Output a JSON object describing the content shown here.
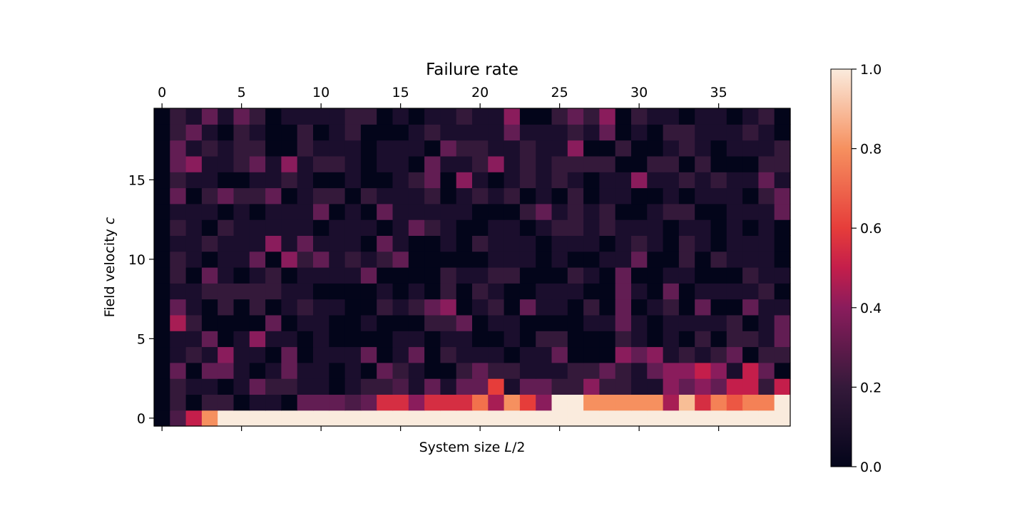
{
  "chart_data": {
    "type": "heatmap",
    "title": "Failure rate",
    "xlabel_prefix": "System size ",
    "xlabel_var": "L",
    "xlabel_suffix": "/2",
    "ylabel_prefix": "Field velocity ",
    "ylabel_var": "c",
    "x_range": [
      0,
      39
    ],
    "y_range": [
      0,
      19
    ],
    "x_ticks": [
      0,
      5,
      10,
      15,
      20,
      25,
      30,
      35
    ],
    "y_ticks": [
      0,
      5,
      10,
      15
    ],
    "x_tick_position": "top",
    "colormap": "rocket",
    "value_range": [
      0,
      1
    ],
    "colorbar_ticks": [
      "0.0",
      "0.2",
      "0.4",
      "0.6",
      "0.8",
      "1.0"
    ],
    "values": [
      [
        0.0,
        0.25,
        0.5,
        0.8,
        1.0,
        1.0,
        1.0,
        1.0,
        1.0,
        1.0,
        1.0,
        1.0,
        1.0,
        1.0,
        1.0,
        1.0,
        1.0,
        1.0,
        1.0,
        1.0,
        1.0,
        1.0,
        1.0,
        1.0,
        1.0,
        1.0,
        1.0,
        1.0,
        1.0,
        1.0,
        1.0,
        1.0,
        1.0,
        1.0,
        1.0,
        1.0,
        1.0,
        1.0,
        1.0,
        1.0
      ],
      [
        0.0,
        0.2,
        0.0,
        0.2,
        0.2,
        0.0,
        0.1,
        0.1,
        0.0,
        0.3,
        0.3,
        0.3,
        0.25,
        0.3,
        0.55,
        0.55,
        0.4,
        0.55,
        0.55,
        0.55,
        0.7,
        0.45,
        0.8,
        0.6,
        0.4,
        1.0,
        1.0,
        0.8,
        0.8,
        0.8,
        0.8,
        0.8,
        0.45,
        0.9,
        0.55,
        0.75,
        0.65,
        0.75,
        0.75,
        1.0
      ],
      [
        0.0,
        0.2,
        0.1,
        0.1,
        0.0,
        0.1,
        0.3,
        0.2,
        0.2,
        0.1,
        0.1,
        0.0,
        0.1,
        0.2,
        0.2,
        0.25,
        0.1,
        0.3,
        0.1,
        0.3,
        0.3,
        0.6,
        0.1,
        0.3,
        0.3,
        0.2,
        0.2,
        0.4,
        0.2,
        0.2,
        0.1,
        0.1,
        0.4,
        0.3,
        0.4,
        0.3,
        0.5,
        0.5,
        0.2,
        0.5
      ],
      [
        0.0,
        0.3,
        0.0,
        0.3,
        0.3,
        0.1,
        0.0,
        0.1,
        0.3,
        0.1,
        0.1,
        0.0,
        0.1,
        0.0,
        0.3,
        0.2,
        0.1,
        0.0,
        0.0,
        0.2,
        0.3,
        0.2,
        0.2,
        0.1,
        0.1,
        0.1,
        0.2,
        0.2,
        0.3,
        0.2,
        0.1,
        0.3,
        0.4,
        0.4,
        0.5,
        0.4,
        0.1,
        0.5,
        0.3,
        0.0
      ],
      [
        0.0,
        0.1,
        0.2,
        0.1,
        0.4,
        0.1,
        0.1,
        0.0,
        0.3,
        0.0,
        0.1,
        0.1,
        0.1,
        0.3,
        0.0,
        0.1,
        0.3,
        0.0,
        0.2,
        0.1,
        0.1,
        0.1,
        0.0,
        0.1,
        0.1,
        0.3,
        0.0,
        0.0,
        0.0,
        0.4,
        0.3,
        0.4,
        0.1,
        0.2,
        0.1,
        0.2,
        0.3,
        0.0,
        0.2,
        0.2
      ],
      [
        0.0,
        0.1,
        0.1,
        0.3,
        0.0,
        0.1,
        0.4,
        0.1,
        0.1,
        0.0,
        0.1,
        0.0,
        0.0,
        0.0,
        0.0,
        0.1,
        0.1,
        0.0,
        0.1,
        0.1,
        0.0,
        0.0,
        0.1,
        0.0,
        0.2,
        0.2,
        0.0,
        0.0,
        0.0,
        0.2,
        0.1,
        0.0,
        0.1,
        0.0,
        0.2,
        0.0,
        0.2,
        0.2,
        0.1,
        0.3
      ],
      [
        0.0,
        0.45,
        0.2,
        0.0,
        0.0,
        0.0,
        0.0,
        0.3,
        0.0,
        0.1,
        0.1,
        0.0,
        0.0,
        0.1,
        0.0,
        0.0,
        0.0,
        0.2,
        0.2,
        0.3,
        0.0,
        0.1,
        0.1,
        0.0,
        0.0,
        0.0,
        0.0,
        0.1,
        0.1,
        0.3,
        0.1,
        0.0,
        0.1,
        0.1,
        0.1,
        0.1,
        0.2,
        0.0,
        0.1,
        0.3
      ],
      [
        0.0,
        0.3,
        0.1,
        0.0,
        0.2,
        0.0,
        0.2,
        0.0,
        0.1,
        0.2,
        0.1,
        0.1,
        0.0,
        0.0,
        0.2,
        0.1,
        0.2,
        0.3,
        0.4,
        0.0,
        0.1,
        0.2,
        0.0,
        0.3,
        0.1,
        0.1,
        0.0,
        0.2,
        0.0,
        0.3,
        0.0,
        0.1,
        0.2,
        0.0,
        0.3,
        0.0,
        0.0,
        0.3,
        0.1,
        0.1
      ],
      [
        0.0,
        0.1,
        0.1,
        0.2,
        0.2,
        0.2,
        0.2,
        0.2,
        0.1,
        0.1,
        0.0,
        0.0,
        0.0,
        0.0,
        0.1,
        0.0,
        0.1,
        0.0,
        0.2,
        0.0,
        0.2,
        0.1,
        0.0,
        0.0,
        0.1,
        0.1,
        0.1,
        0.0,
        0.0,
        0.3,
        0.1,
        0.0,
        0.3,
        0.0,
        0.1,
        0.1,
        0.1,
        0.1,
        0.2,
        0.0
      ],
      [
        0.0,
        0.2,
        0.0,
        0.3,
        0.1,
        0.0,
        0.1,
        0.2,
        0.0,
        0.1,
        0.1,
        0.1,
        0.1,
        0.3,
        0.0,
        0.0,
        0.0,
        0.0,
        0.2,
        0.1,
        0.1,
        0.2,
        0.2,
        0.0,
        0.0,
        0.0,
        0.2,
        0.1,
        0.0,
        0.3,
        0.0,
        0.0,
        0.1,
        0.1,
        0.0,
        0.0,
        0.0,
        0.2,
        0.1,
        0.1
      ],
      [
        0.0,
        0.2,
        0.1,
        0.0,
        0.1,
        0.1,
        0.3,
        0.0,
        0.4,
        0.2,
        0.3,
        0.1,
        0.2,
        0.1,
        0.2,
        0.3,
        0.0,
        0.0,
        0.0,
        0.0,
        0.0,
        0.1,
        0.1,
        0.1,
        0.0,
        0.1,
        0.0,
        0.0,
        0.1,
        0.1,
        0.3,
        0.0,
        0.0,
        0.2,
        0.0,
        0.2,
        0.1,
        0.1,
        0.1,
        0.0
      ],
      [
        0.0,
        0.1,
        0.1,
        0.2,
        0.1,
        0.1,
        0.1,
        0.4,
        0.1,
        0.3,
        0.1,
        0.1,
        0.1,
        0.0,
        0.3,
        0.1,
        0.0,
        0.0,
        0.1,
        0.0,
        0.2,
        0.1,
        0.1,
        0.1,
        0.0,
        0.1,
        0.1,
        0.1,
        0.0,
        0.1,
        0.2,
        0.1,
        0.0,
        0.2,
        0.1,
        0.0,
        0.1,
        0.1,
        0.1,
        0.0
      ],
      [
        0.0,
        0.2,
        0.1,
        0.0,
        0.2,
        0.1,
        0.1,
        0.1,
        0.1,
        0.1,
        0.0,
        0.1,
        0.1,
        0.1,
        0.0,
        0.1,
        0.3,
        0.2,
        0.1,
        0.0,
        0.0,
        0.1,
        0.1,
        0.0,
        0.1,
        0.2,
        0.2,
        0.1,
        0.2,
        0.1,
        0.1,
        0.1,
        0.0,
        0.1,
        0.1,
        0.0,
        0.1,
        0.0,
        0.1,
        0.0
      ],
      [
        0.0,
        0.1,
        0.1,
        0.1,
        0.0,
        0.1,
        0.0,
        0.1,
        0.1,
        0.1,
        0.3,
        0.0,
        0.1,
        0.0,
        0.3,
        0.1,
        0.1,
        0.1,
        0.1,
        0.1,
        0.0,
        0.0,
        0.0,
        0.2,
        0.3,
        0.1,
        0.2,
        0.1,
        0.2,
        0.0,
        0.0,
        0.1,
        0.2,
        0.2,
        0.0,
        0.0,
        0.1,
        0.1,
        0.1,
        0.3
      ],
      [
        0.0,
        0.3,
        0.0,
        0.2,
        0.3,
        0.2,
        0.2,
        0.3,
        0.0,
        0.1,
        0.2,
        0.2,
        0.0,
        0.2,
        0.1,
        0.1,
        0.1,
        0.2,
        0.0,
        0.1,
        0.2,
        0.1,
        0.2,
        0.0,
        0.1,
        0.0,
        0.2,
        0.0,
        0.1,
        0.1,
        0.0,
        0.0,
        0.1,
        0.0,
        0.1,
        0.1,
        0.1,
        0.0,
        0.2,
        0.3
      ],
      [
        0.0,
        0.2,
        0.1,
        0.1,
        0.0,
        0.0,
        0.1,
        0.1,
        0.2,
        0.1,
        0.0,
        0.0,
        0.1,
        0.0,
        0.0,
        0.1,
        0.2,
        0.3,
        0.0,
        0.4,
        0.1,
        0.0,
        0.1,
        0.2,
        0.1,
        0.2,
        0.1,
        0.0,
        0.1,
        0.1,
        0.4,
        0.1,
        0.1,
        0.2,
        0.1,
        0.2,
        0.1,
        0.1,
        0.3,
        0.1
      ],
      [
        0.0,
        0.3,
        0.4,
        0.1,
        0.1,
        0.2,
        0.3,
        0.1,
        0.4,
        0.1,
        0.2,
        0.2,
        0.1,
        0.0,
        0.1,
        0.1,
        0.0,
        0.3,
        0.1,
        0.1,
        0.2,
        0.4,
        0.1,
        0.2,
        0.1,
        0.2,
        0.2,
        0.2,
        0.2,
        0.0,
        0.0,
        0.2,
        0.2,
        0.0,
        0.2,
        0.0,
        0.0,
        0.0,
        0.2,
        0.2
      ],
      [
        0.0,
        0.3,
        0.1,
        0.2,
        0.1,
        0.2,
        0.2,
        0.0,
        0.0,
        0.2,
        0.1,
        0.1,
        0.1,
        0.0,
        0.1,
        0.1,
        0.1,
        0.0,
        0.3,
        0.2,
        0.2,
        0.1,
        0.1,
        0.2,
        0.1,
        0.1,
        0.4,
        0.0,
        0.0,
        0.2,
        0.0,
        0.0,
        0.1,
        0.2,
        0.1,
        0.0,
        0.1,
        0.1,
        0.1,
        0.2
      ],
      [
        0.0,
        0.2,
        0.3,
        0.1,
        0.0,
        0.2,
        0.1,
        0.0,
        0.0,
        0.2,
        0.0,
        0.1,
        0.2,
        0.0,
        0.0,
        0.0,
        0.1,
        0.2,
        0.1,
        0.1,
        0.1,
        0.1,
        0.3,
        0.1,
        0.1,
        0.1,
        0.2,
        0.1,
        0.3,
        0.0,
        0.1,
        0.0,
        0.2,
        0.2,
        0.1,
        0.1,
        0.1,
        0.2,
        0.1,
        0.0
      ],
      [
        0.0,
        0.2,
        0.1,
        0.3,
        0.1,
        0.3,
        0.2,
        0.0,
        0.1,
        0.1,
        0.1,
        0.1,
        0.2,
        0.2,
        0.0,
        0.1,
        0.0,
        0.1,
        0.1,
        0.2,
        0.1,
        0.1,
        0.4,
        0.0,
        0.0,
        0.2,
        0.3,
        0.2,
        0.4,
        0.0,
        0.2,
        0.1,
        0.1,
        0.0,
        0.1,
        0.1,
        0.0,
        0.1,
        0.2,
        0.0
      ]
    ]
  }
}
